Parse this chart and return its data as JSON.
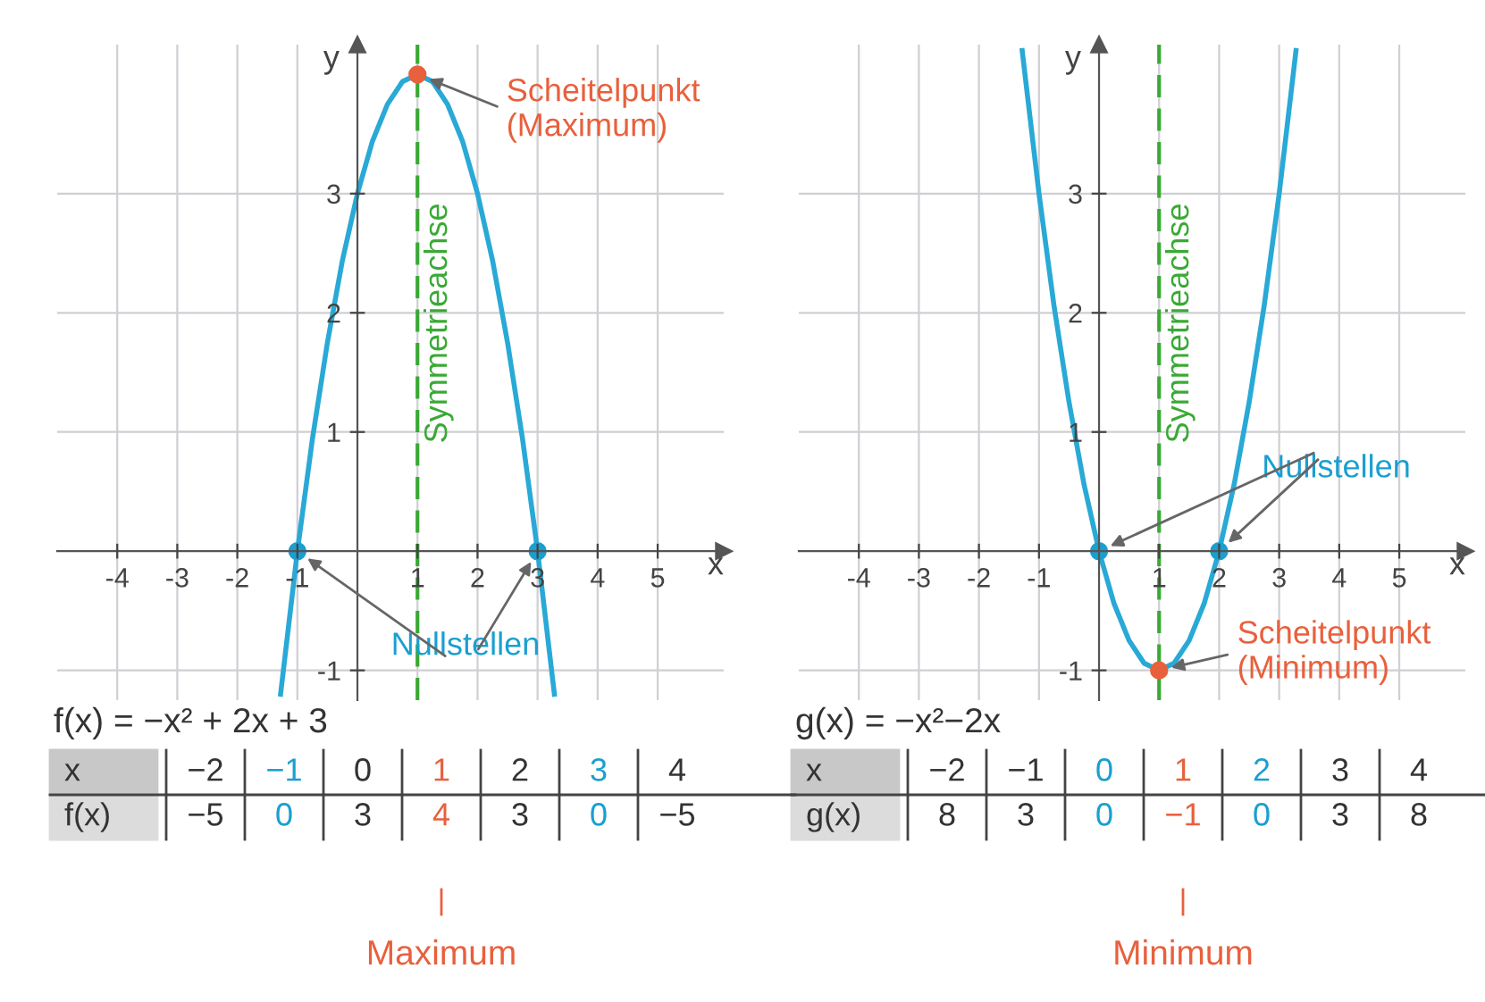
{
  "chart_data": [
    {
      "type": "line",
      "title": "f(x) = −x² + 2x + 3",
      "xlabel": "x",
      "ylabel": "y",
      "xlim": [
        -5,
        6.1
      ],
      "ylim": [
        -1.25,
        4.25
      ],
      "xticks": [
        -4,
        -3,
        -2,
        -1,
        1,
        2,
        3,
        4,
        5
      ],
      "yticks": [
        -1,
        1,
        2,
        3
      ],
      "grid": true,
      "series": [
        {
          "color": "#29a9d6",
          "x": [
            -1.28,
            -1,
            -0.75,
            -0.5,
            -0.25,
            0,
            0.25,
            0.5,
            0.75,
            1,
            1.25,
            1.5,
            1.75,
            2,
            2.25,
            2.5,
            2.75,
            3,
            3.28
          ],
          "values": [
            -1.2,
            0,
            0.94,
            1.75,
            2.44,
            3,
            3.44,
            3.75,
            3.94,
            4,
            3.94,
            3.75,
            3.44,
            3,
            2.44,
            1.75,
            0.94,
            0,
            -1.2
          ]
        },
        {
          "type": "scatter",
          "color": "#1a9fd0",
          "x": [
            -1,
            3
          ],
          "values": [
            0,
            0
          ]
        },
        {
          "type": "scatter",
          "color": "#e8603c",
          "x": [
            1
          ],
          "values": [
            4
          ]
        }
      ],
      "ref_lines": [
        {
          "axis": "x",
          "value": 1,
          "label": "Symmetrieachse",
          "color": "#3aa935",
          "line_style": "dashed"
        }
      ],
      "annotations": [
        {
          "text": "Scheitelpunkt\n(Maximum)",
          "x": 1,
          "y": 4
        },
        {
          "text": "Nullstellen",
          "x": -1,
          "y": 0
        },
        "Maximum",
        "x",
        "−2",
        "−1",
        "0",
        "1",
        "2",
        "3",
        "4",
        "f(x)",
        "−5",
        "0",
        "3",
        "4",
        "3",
        "0",
        "−5"
      ]
    },
    {
      "type": "line",
      "title": "g(x) = −x²−2x",
      "xlabel": "x",
      "ylabel": "y",
      "xlim": [
        -5,
        6.1
      ],
      "ylim": [
        -1.25,
        4.25
      ],
      "xticks": [
        -4,
        -3,
        -2,
        -1,
        1,
        2,
        3,
        4,
        5
      ],
      "yticks": [
        -1,
        1,
        2,
        3
      ],
      "grid": true,
      "series": [
        {
          "color": "#29a9d6",
          "x": [
            -1.28,
            -1,
            -0.75,
            -0.5,
            -0.25,
            0,
            0.25,
            0.5,
            0.75,
            1,
            1.25,
            1.5,
            1.75,
            2,
            2.25,
            2.5,
            2.75,
            3,
            3.28
          ],
          "values": [
            4.2,
            3,
            2.06,
            1.25,
            0.56,
            0,
            -0.44,
            -0.75,
            -0.94,
            -1,
            -0.94,
            -0.75,
            -0.44,
            0,
            0.56,
            1.25,
            2.06,
            3,
            4.2
          ]
        },
        {
          "type": "scatter",
          "color": "#1a9fd0",
          "x": [
            0,
            2
          ],
          "values": [
            0,
            0
          ]
        },
        {
          "type": "scatter",
          "color": "#e8603c",
          "x": [
            1
          ],
          "values": [
            -1
          ]
        }
      ],
      "ref_lines": [
        {
          "axis": "x",
          "value": 1,
          "label": "Symmetrieachse",
          "color": "#3aa935",
          "line_style": "dashed"
        }
      ],
      "annotations": [
        {
          "text": "Scheitelpunkt\n(Minimum)",
          "x": 1,
          "y": -1
        },
        {
          "text": "Nullstellen",
          "x": 2,
          "y": 0
        },
        "Minimum",
        "x",
        "−2",
        "−1",
        "0",
        "1",
        "2",
        "3",
        "4",
        "g(x)",
        "8",
        "3",
        "0",
        "−1",
        "0",
        "3",
        "8"
      ]
    }
  ]
}
